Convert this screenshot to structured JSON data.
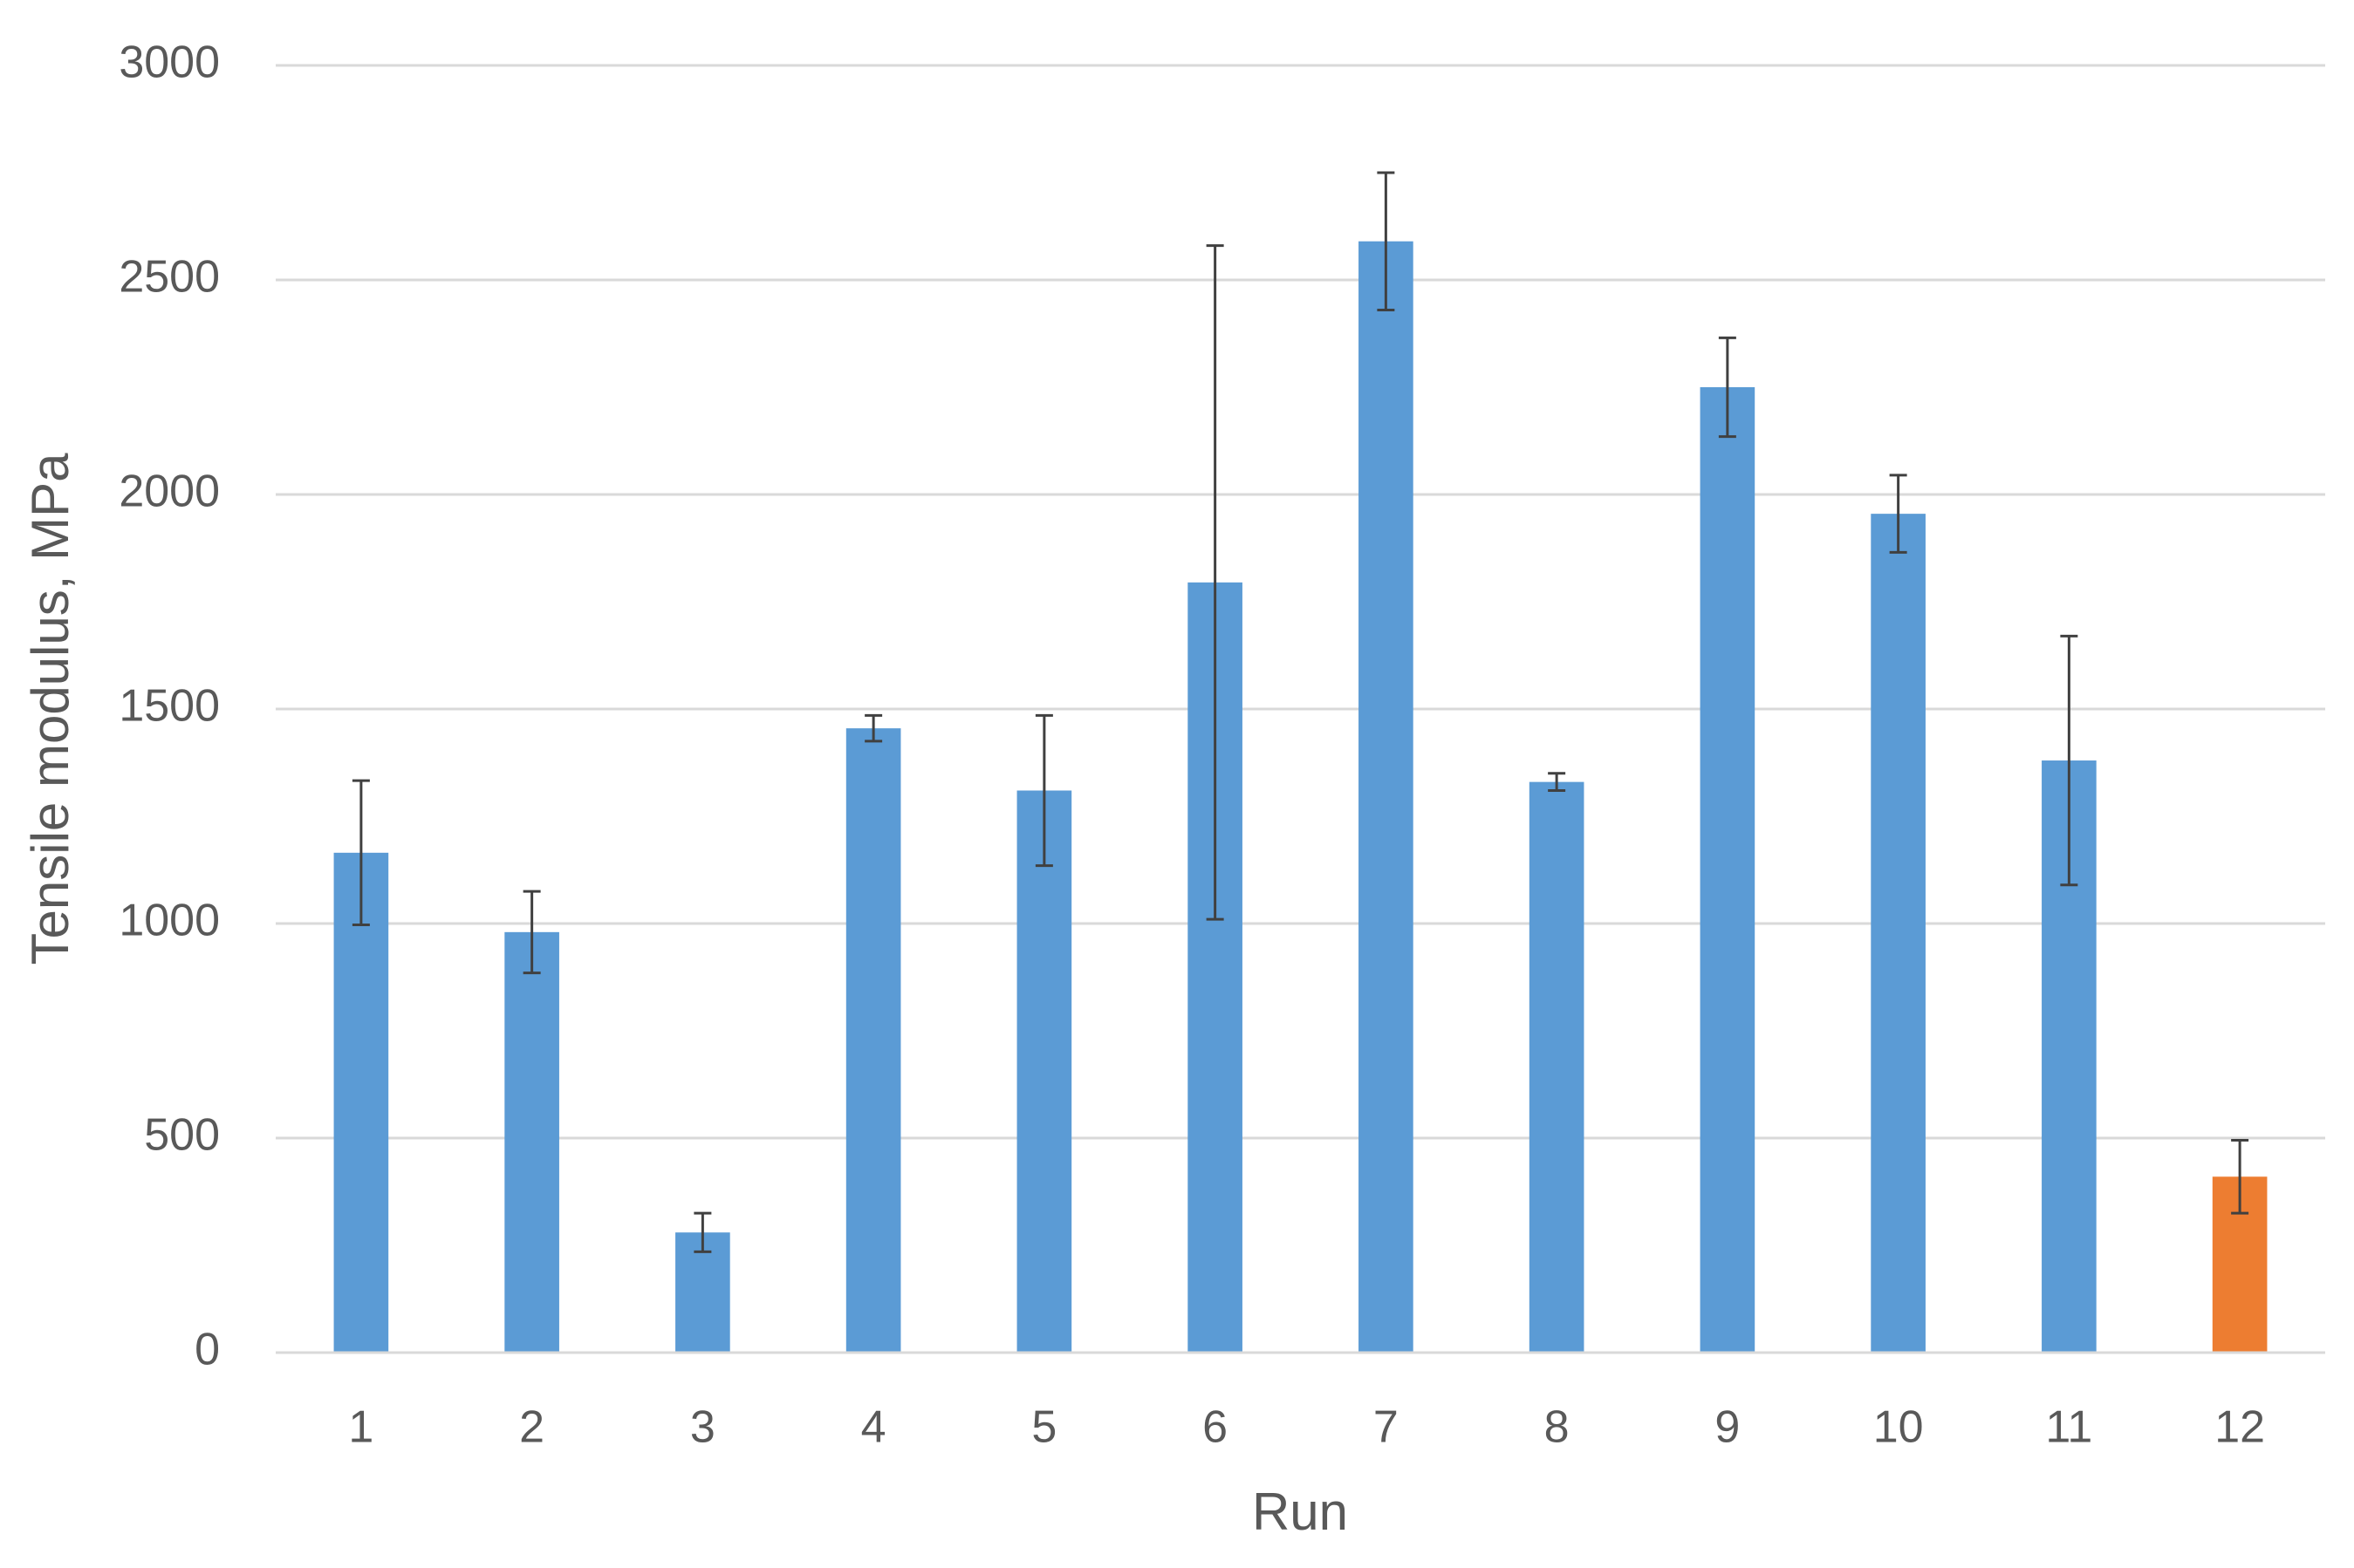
{
  "chart_data": {
    "type": "bar",
    "categories": [
      "1",
      "2",
      "3",
      "4",
      "5",
      "6",
      "7",
      "8",
      "9",
      "10",
      "11",
      "12"
    ],
    "values": [
      1165,
      980,
      280,
      1455,
      1310,
      1795,
      2590,
      1330,
      2250,
      1955,
      1380,
      410
    ],
    "errors": [
      168,
      95,
      45,
      30,
      175,
      785,
      160,
      20,
      115,
      90,
      290,
      85
    ],
    "colors": [
      "#5b9bd5",
      "#5b9bd5",
      "#5b9bd5",
      "#5b9bd5",
      "#5b9bd5",
      "#5b9bd5",
      "#5b9bd5",
      "#5b9bd5",
      "#5b9bd5",
      "#5b9bd5",
      "#5b9bd5",
      "#ed7d31"
    ],
    "x_label": "Run",
    "y_label": "Tensile modulus, MPa",
    "ylim": [
      0,
      3000
    ],
    "yticks": [
      0,
      500,
      1000,
      1500,
      2000,
      2500,
      3000
    ],
    "grid": true
  }
}
